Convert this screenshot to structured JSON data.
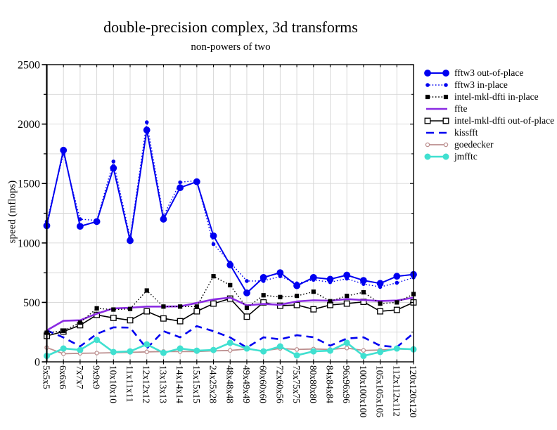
{
  "chart_data": {
    "type": "line",
    "title": "double-precision complex, 3d transforms",
    "subtitle": "non-powers of two",
    "xlabel": "",
    "ylabel": "speed (mflops)",
    "ylim": [
      0,
      2500
    ],
    "ytick_step": 500,
    "yminor_step": 250,
    "ytick_labels": [
      "0",
      "500",
      "1000",
      "1500",
      "2000",
      "2500"
    ],
    "grid": true,
    "grid_color": "#d6d6d6",
    "background": "#ffffff",
    "legend_position": "right-outside",
    "categories": [
      "5x5x5",
      "6x6x6",
      "7x7x7",
      "9x9x9",
      "10x10x10",
      "11x11x11",
      "12x12x12",
      "13x13x13",
      "14x14x14",
      "15x15x15",
      "24x25x28",
      "48x48x48",
      "49x49x49",
      "60x60x60",
      "72x60x56",
      "75x75x75",
      "80x80x80",
      "84x84x84",
      "96x96x96",
      "100x100x100",
      "105x105x105",
      "112x112x112",
      "120x120x120"
    ],
    "series": [
      {
        "name": "fftw3 out-of-place",
        "color": "#0000f0",
        "line": "solid",
        "line_width": 2,
        "marker": "circle",
        "marker_fill": "solid",
        "marker_size": 4.4,
        "values": [
          1145,
          1780,
          1140,
          1180,
          1630,
          1020,
          1950,
          1200,
          1465,
          1515,
          1060,
          815,
          580,
          710,
          750,
          640,
          710,
          695,
          730,
          685,
          660,
          720,
          735
        ]
      },
      {
        "name": "fftw3 in-place",
        "color": "#0000f0",
        "line": "dotted",
        "line_width": 1.4,
        "marker": "circle",
        "marker_fill": "solid",
        "marker_size": 2.3,
        "values": [
          1180,
          1750,
          1200,
          1190,
          1685,
          1045,
          2015,
          1225,
          1510,
          1525,
          990,
          835,
          680,
          680,
          720,
          660,
          690,
          670,
          700,
          655,
          630,
          665,
          710
        ]
      },
      {
        "name": "intel-mkl-dfti in-place",
        "color": "#000000",
        "line": "dotted",
        "line_width": 1.4,
        "marker": "square",
        "marker_fill": "solid",
        "marker_size": 2.6,
        "values": [
          245,
          260,
          330,
          450,
          440,
          445,
          600,
          465,
          465,
          465,
          720,
          645,
          455,
          560,
          545,
          555,
          590,
          510,
          555,
          585,
          490,
          500,
          570
        ]
      },
      {
        "name": "ffte",
        "color": "#8a2be2",
        "line": "solid",
        "line_width": 2.6,
        "marker": "none",
        "marker_fill": "solid",
        "marker_size": 0,
        "values": [
          265,
          345,
          350,
          405,
          450,
          455,
          465,
          465,
          467,
          495,
          525,
          540,
          475,
          487,
          480,
          508,
          518,
          514,
          528,
          520,
          512,
          516,
          540
        ]
      },
      {
        "name": "intel-mkl-dfti out-of-place",
        "color": "#000000",
        "line": "solid",
        "line_width": 1.6,
        "marker": "square",
        "marker_fill": "open",
        "marker_size": 3.8,
        "values": [
          218,
          255,
          308,
          395,
          370,
          350,
          425,
          365,
          342,
          425,
          490,
          532,
          380,
          500,
          472,
          478,
          442,
          478,
          490,
          505,
          425,
          437,
          500
        ]
      },
      {
        "name": "kissfft",
        "color": "#0000f0",
        "line": "dashed",
        "line_width": 2.6,
        "marker": "none",
        "marker_fill": "solid",
        "marker_size": 0,
        "values": [
          265,
          205,
          130,
          235,
          290,
          288,
          112,
          258,
          206,
          300,
          258,
          205,
          120,
          206,
          190,
          224,
          207,
          136,
          196,
          206,
          136,
          125,
          240
        ]
      },
      {
        "name": "goedecker",
        "color": "#bc8f8f",
        "line": "solid",
        "line_width": 1.8,
        "marker": "circle",
        "marker_fill": "open",
        "marker_size": 2.6,
        "values": [
          120,
          68,
          72,
          74,
          77,
          80,
          84,
          87,
          86,
          86,
          92,
          96,
          108,
          92,
          113,
          104,
          108,
          104,
          116,
          96,
          100,
          108,
          104
        ]
      },
      {
        "name": "jmfftc",
        "color": "#40e0d0",
        "line": "solid",
        "line_width": 2.6,
        "marker": "circle",
        "marker_fill": "solid",
        "marker_size": 4,
        "values": [
          50,
          112,
          100,
          185,
          83,
          88,
          147,
          76,
          112,
          94,
          100,
          160,
          112,
          88,
          130,
          55,
          88,
          94,
          160,
          50,
          83,
          112,
          105
        ]
      }
    ],
    "draw_order": [
      6,
      5,
      7,
      4,
      3,
      2,
      1,
      0
    ]
  }
}
